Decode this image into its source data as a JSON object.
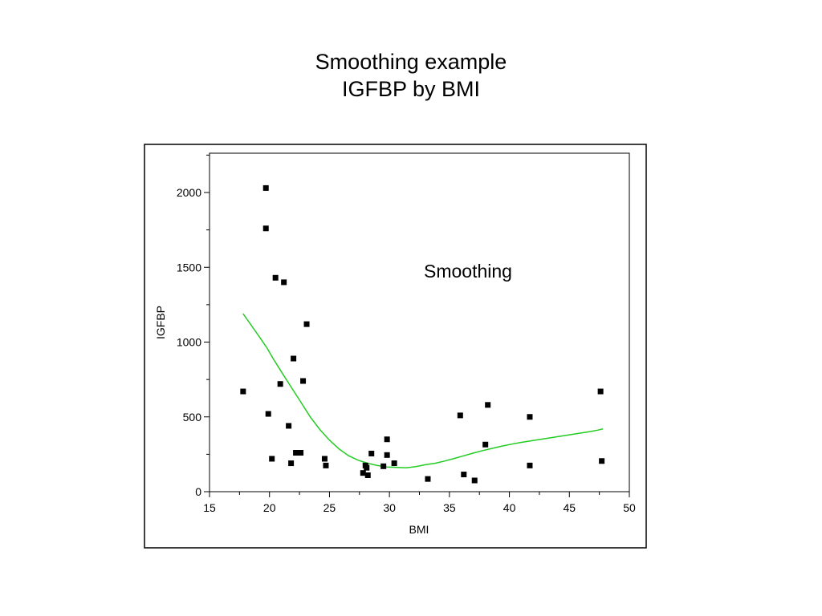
{
  "chart_data": {
    "type": "scatter",
    "title": "Smoothing example",
    "subtitle": "IGFBP by BMI",
    "xlabel": "BMI",
    "ylabel": "IGFBP",
    "xlim": [
      15,
      50
    ],
    "ylim": [
      0,
      2250
    ],
    "x_ticks": [
      15,
      20,
      25,
      30,
      35,
      40,
      45,
      50
    ],
    "y_ticks": [
      0,
      500,
      1000,
      1500,
      2000
    ],
    "grid": false,
    "annotation": "Smoothing",
    "colors": {
      "points": "#000000",
      "smooth": "#22cc22",
      "frame": "#000000"
    },
    "points": [
      {
        "x": 17.8,
        "y": 670
      },
      {
        "x": 19.7,
        "y": 2030
      },
      {
        "x": 19.7,
        "y": 1760
      },
      {
        "x": 19.9,
        "y": 520
      },
      {
        "x": 20.2,
        "y": 220
      },
      {
        "x": 20.5,
        "y": 1430
      },
      {
        "x": 20.9,
        "y": 720
      },
      {
        "x": 21.2,
        "y": 1400
      },
      {
        "x": 21.6,
        "y": 440
      },
      {
        "x": 21.8,
        "y": 190
      },
      {
        "x": 22.0,
        "y": 890
      },
      {
        "x": 22.2,
        "y": 260
      },
      {
        "x": 22.6,
        "y": 260
      },
      {
        "x": 22.8,
        "y": 740
      },
      {
        "x": 23.1,
        "y": 1120
      },
      {
        "x": 24.6,
        "y": 220
      },
      {
        "x": 24.7,
        "y": 175
      },
      {
        "x": 27.8,
        "y": 125
      },
      {
        "x": 28.0,
        "y": 175
      },
      {
        "x": 28.1,
        "y": 160
      },
      {
        "x": 28.2,
        "y": 110
      },
      {
        "x": 28.5,
        "y": 255
      },
      {
        "x": 29.5,
        "y": 170
      },
      {
        "x": 29.8,
        "y": 350
      },
      {
        "x": 29.8,
        "y": 245
      },
      {
        "x": 30.4,
        "y": 190
      },
      {
        "x": 33.2,
        "y": 85
      },
      {
        "x": 35.9,
        "y": 510
      },
      {
        "x": 36.2,
        "y": 115
      },
      {
        "x": 37.1,
        "y": 75
      },
      {
        "x": 38.0,
        "y": 315
      },
      {
        "x": 38.2,
        "y": 580
      },
      {
        "x": 41.7,
        "y": 500
      },
      {
        "x": 41.7,
        "y": 175
      },
      {
        "x": 47.6,
        "y": 670
      },
      {
        "x": 47.7,
        "y": 205
      }
    ],
    "smooth": {
      "x": [
        17.8,
        18.5,
        19.2,
        19.8,
        20.3,
        21.0,
        21.8,
        22.6,
        23.4,
        24.2,
        25.0,
        25.8,
        26.6,
        27.4,
        28.2,
        29.0,
        29.8,
        30.6,
        31.4,
        32.2,
        33.0,
        33.8,
        34.6,
        35.4,
        36.2,
        37.0,
        37.8,
        38.6,
        39.4,
        40.2,
        41.0,
        41.8,
        42.6,
        43.4,
        44.2,
        45.0,
        45.8,
        46.6,
        47.4,
        47.8
      ],
      "y": [
        1190,
        1110,
        1030,
        960,
        890,
        800,
        700,
        600,
        500,
        415,
        345,
        285,
        240,
        210,
        190,
        175,
        165,
        162,
        160,
        168,
        180,
        190,
        205,
        222,
        240,
        258,
        275,
        290,
        305,
        318,
        330,
        340,
        350,
        360,
        370,
        380,
        390,
        400,
        412,
        420
      ]
    }
  }
}
